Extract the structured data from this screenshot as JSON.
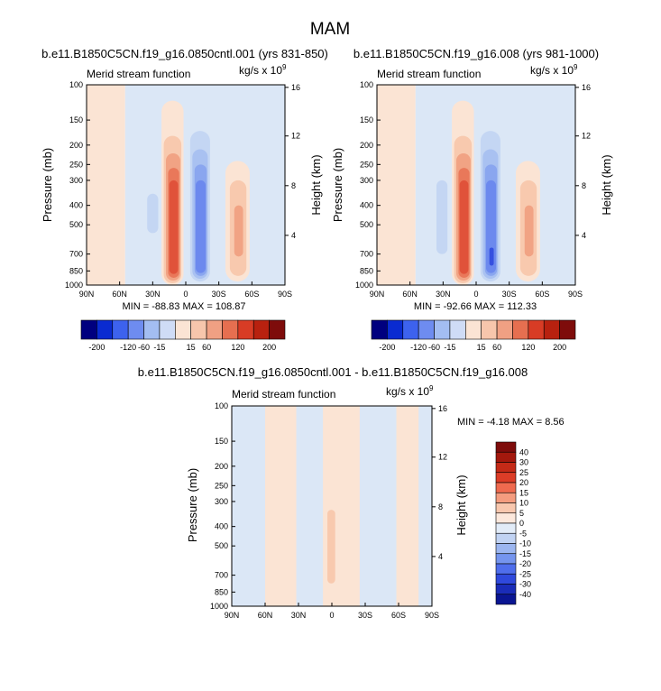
{
  "figure_title": "MAM",
  "colors": {
    "red_ramp": [
      "#fbe4d4",
      "#f8c9ae",
      "#f1a384",
      "#e9785a",
      "#e0523a",
      "#d23220",
      "#b8210f"
    ],
    "blue_ramp": [
      "#dbe7f6",
      "#c4d6f3",
      "#a9c1f1",
      "#8aa6ef",
      "#6c89ee",
      "#4d6aed",
      "#3550e0"
    ],
    "frame": "#000000"
  },
  "chart_data": [
    {
      "type": "heatmap",
      "title": "b.e11.B1850C5CN.f19_g16.0850cntl.001 (yrs 831-850)",
      "subtitle_left": "Merid stream function",
      "units": "kg/s x 10",
      "units_exponent": "9",
      "ylabel": "Pressure (mb)",
      "ylabel_right": "Height (km)",
      "x_tick_labels": [
        "90N",
        "60N",
        "30N",
        "0",
        "30S",
        "60S",
        "90S"
      ],
      "y_tick_labels": [
        "100",
        "150",
        "200",
        "250",
        "300",
        "400",
        "500",
        "700",
        "850",
        "1000"
      ],
      "y_tick_values": [
        100,
        150,
        200,
        250,
        300,
        400,
        500,
        700,
        850,
        1000
      ],
      "y_right_tick_labels": [
        "16",
        "12",
        "8",
        "4"
      ],
      "y_right_tick_values": [
        16,
        12,
        8,
        4
      ],
      "x_range": [
        90,
        -90
      ],
      "y_range": [
        100,
        1000
      ],
      "y_scale": "log",
      "stats_text": "MIN = -88.83  MAX = 108.87",
      "colorbar_levels": [
        "-200",
        "-120",
        "-60",
        "-15",
        "15",
        "60",
        "120",
        "200"
      ],
      "colorbar_orientation": "horizontal",
      "cells": [
        {
          "lat": [
            90,
            55
          ],
          "p": [
            100,
            1000
          ],
          "sign": 1,
          "level": 0
        },
        {
          "lat": [
            55,
            -90
          ],
          "p": [
            100,
            1000
          ],
          "sign": -1,
          "level": 0
        },
        {
          "lat": [
            35,
            25
          ],
          "p": [
            350,
            550
          ],
          "sign": -1,
          "level": 1
        },
        {
          "lat": [
            22,
            2
          ],
          "p": [
            120,
            1000
          ],
          "sign": 1,
          "level": 0
        },
        {
          "lat": [
            20,
            4
          ],
          "p": [
            180,
            980
          ],
          "sign": 1,
          "level": 1
        },
        {
          "lat": [
            18,
            5
          ],
          "p": [
            220,
            950
          ],
          "sign": 1,
          "level": 2
        },
        {
          "lat": [
            16,
            6
          ],
          "p": [
            260,
            920
          ],
          "sign": 1,
          "level": 3
        },
        {
          "lat": [
            15,
            7
          ],
          "p": [
            300,
            880
          ],
          "sign": 1,
          "level": 4
        },
        {
          "lat": [
            -2,
            -24
          ],
          "p": [
            130,
            1000
          ],
          "sign": -1,
          "level": 0
        },
        {
          "lat": [
            -4,
            -22
          ],
          "p": [
            170,
            960
          ],
          "sign": -1,
          "level": 1
        },
        {
          "lat": [
            -6,
            -20
          ],
          "p": [
            210,
            930
          ],
          "sign": -1,
          "level": 2
        },
        {
          "lat": [
            -8,
            -19
          ],
          "p": [
            250,
            900
          ],
          "sign": -1,
          "level": 3
        },
        {
          "lat": [
            -9,
            -18
          ],
          "p": [
            300,
            870
          ],
          "sign": -1,
          "level": 4
        },
        {
          "lat": [
            -36,
            -58
          ],
          "p": [
            240,
            960
          ],
          "sign": 1,
          "level": 0
        },
        {
          "lat": [
            -40,
            -55
          ],
          "p": [
            300,
            900
          ],
          "sign": 1,
          "level": 1
        },
        {
          "lat": [
            -44,
            -52
          ],
          "p": [
            400,
            720
          ],
          "sign": 1,
          "level": 2
        }
      ]
    },
    {
      "type": "heatmap",
      "title": "b.e11.B1850C5CN.f19_g16.008 (yrs 981-1000)",
      "subtitle_left": "Merid stream function",
      "units": "kg/s x 10",
      "units_exponent": "9",
      "ylabel": "Pressure (mb)",
      "ylabel_right": "Height (km)",
      "x_tick_labels": [
        "90N",
        "60N",
        "30N",
        "0",
        "30S",
        "60S",
        "90S"
      ],
      "y_tick_labels": [
        "100",
        "150",
        "200",
        "250",
        "300",
        "400",
        "500",
        "700",
        "850",
        "1000"
      ],
      "y_tick_values": [
        100,
        150,
        200,
        250,
        300,
        400,
        500,
        700,
        850,
        1000
      ],
      "y_right_tick_labels": [
        "16",
        "12",
        "8",
        "4"
      ],
      "y_right_tick_values": [
        16,
        12,
        8,
        4
      ],
      "x_range": [
        90,
        -90
      ],
      "y_range": [
        100,
        1000
      ],
      "y_scale": "log",
      "stats_text": "MIN = -92.66  MAX = 112.33",
      "colorbar_levels": [
        "-200",
        "-120",
        "-60",
        "-15",
        "15",
        "60",
        "120",
        "200"
      ],
      "colorbar_orientation": "horizontal",
      "cells": [
        {
          "lat": [
            90,
            55
          ],
          "p": [
            100,
            1000
          ],
          "sign": 1,
          "level": 0
        },
        {
          "lat": [
            55,
            -90
          ],
          "p": [
            100,
            1000
          ],
          "sign": -1,
          "level": 0
        },
        {
          "lat": [
            36,
            26
          ],
          "p": [
            300,
            700
          ],
          "sign": -1,
          "level": 1
        },
        {
          "lat": [
            22,
            2
          ],
          "p": [
            120,
            1000
          ],
          "sign": 1,
          "level": 0
        },
        {
          "lat": [
            20,
            4
          ],
          "p": [
            180,
            980
          ],
          "sign": 1,
          "level": 1
        },
        {
          "lat": [
            18,
            5
          ],
          "p": [
            220,
            950
          ],
          "sign": 1,
          "level": 2
        },
        {
          "lat": [
            16,
            6
          ],
          "p": [
            260,
            920
          ],
          "sign": 1,
          "level": 3
        },
        {
          "lat": [
            15,
            7
          ],
          "p": [
            300,
            880
          ],
          "sign": 1,
          "level": 4
        },
        {
          "lat": [
            -2,
            -24
          ],
          "p": [
            130,
            1000
          ],
          "sign": -1,
          "level": 0
        },
        {
          "lat": [
            -4,
            -22
          ],
          "p": [
            170,
            960
          ],
          "sign": -1,
          "level": 1
        },
        {
          "lat": [
            -6,
            -20
          ],
          "p": [
            210,
            930
          ],
          "sign": -1,
          "level": 2
        },
        {
          "lat": [
            -8,
            -19
          ],
          "p": [
            250,
            900
          ],
          "sign": -1,
          "level": 3
        },
        {
          "lat": [
            -9,
            -18
          ],
          "p": [
            300,
            870
          ],
          "sign": -1,
          "level": 4
        },
        {
          "lat": [
            -12,
            -16
          ],
          "p": [
            650,
            800
          ],
          "sign": -1,
          "level": 6
        },
        {
          "lat": [
            -36,
            -58
          ],
          "p": [
            240,
            960
          ],
          "sign": 1,
          "level": 0
        },
        {
          "lat": [
            -40,
            -55
          ],
          "p": [
            300,
            900
          ],
          "sign": 1,
          "level": 1
        },
        {
          "lat": [
            -44,
            -52
          ],
          "p": [
            400,
            720
          ],
          "sign": 1,
          "level": 2
        }
      ]
    },
    {
      "type": "heatmap",
      "title": "b.e11.B1850C5CN.f19_g16.0850cntl.001 - b.e11.B1850C5CN.f19_g16.008",
      "subtitle_left": "Merid stream function",
      "units": "kg/s x 10",
      "units_exponent": "9",
      "ylabel": "Pressure (mb)",
      "ylabel_right": "Height (km)",
      "x_tick_labels": [
        "90N",
        "60N",
        "30N",
        "0",
        "30S",
        "60S",
        "90S"
      ],
      "y_tick_labels": [
        "100",
        "150",
        "200",
        "250",
        "300",
        "400",
        "500",
        "700",
        "850",
        "1000"
      ],
      "y_tick_values": [
        100,
        150,
        200,
        250,
        300,
        400,
        500,
        700,
        850,
        1000
      ],
      "y_right_tick_labels": [
        "16",
        "12",
        "8",
        "4"
      ],
      "y_right_tick_values": [
        16,
        12,
        8,
        4
      ],
      "x_range": [
        90,
        -90
      ],
      "y_range": [
        100,
        1000
      ],
      "y_scale": "log",
      "stats_text": "MIN =  -4.18  MAX =   8.56",
      "colorbar_levels": [
        "40",
        "30",
        "25",
        "20",
        "15",
        "10",
        "5",
        "0",
        "-5",
        "-10",
        "-15",
        "-20",
        "-25",
        "-30",
        "-40"
      ],
      "colorbar_orientation": "vertical",
      "cells": [
        {
          "lat": [
            90,
            -90
          ],
          "p": [
            100,
            1000
          ],
          "sign": -1,
          "level": 0
        },
        {
          "lat": [
            60,
            32
          ],
          "p": [
            100,
            1000
          ],
          "sign": 1,
          "level": 0
        },
        {
          "lat": [
            8,
            -25
          ],
          "p": [
            100,
            1000
          ],
          "sign": 1,
          "level": 0
        },
        {
          "lat": [
            4,
            -3
          ],
          "p": [
            330,
            770
          ],
          "sign": 1,
          "level": 1
        },
        {
          "lat": [
            -58,
            -78
          ],
          "p": [
            100,
            1000
          ],
          "sign": 1,
          "level": 0
        }
      ]
    }
  ]
}
